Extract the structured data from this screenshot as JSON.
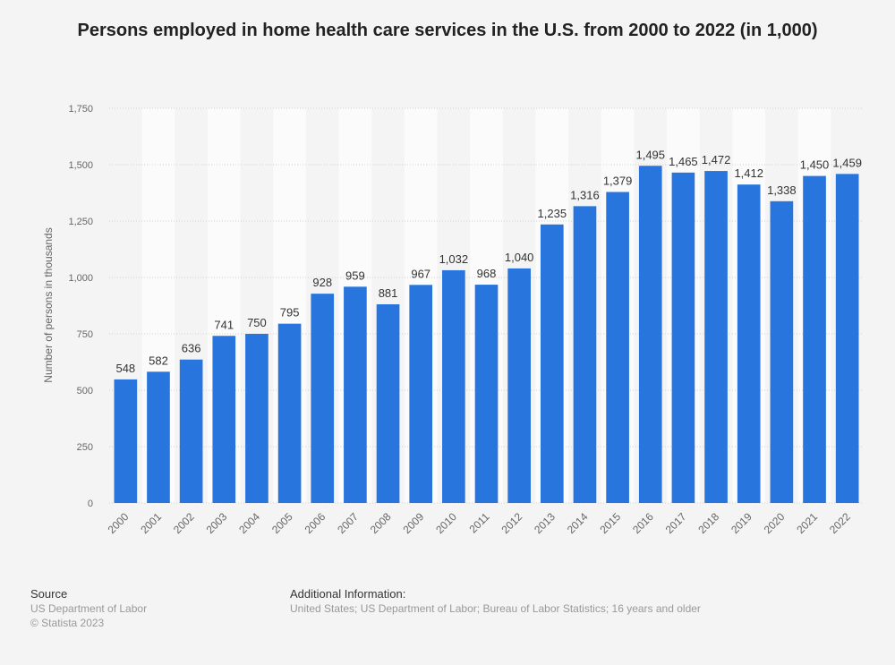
{
  "chart_data": {
    "type": "bar",
    "title": "Persons employed in home health care services in the U.S. from 2000 to 2022 (in 1,000)",
    "ylabel": "Number of persons in thousands",
    "xlabel": "",
    "ylim": [
      0,
      1750
    ],
    "yticks": [
      0,
      250,
      500,
      750,
      1000,
      1250,
      1500,
      1750
    ],
    "ytick_labels": [
      "0",
      "250",
      "500",
      "750",
      "1,000",
      "1,250",
      "1,500",
      "1,750"
    ],
    "categories": [
      "2000",
      "2001",
      "2002",
      "2003",
      "2004",
      "2005",
      "2006",
      "2007",
      "2008",
      "2009",
      "2010",
      "2011",
      "2012",
      "2013",
      "2014",
      "2015",
      "2016",
      "2017",
      "2018",
      "2019",
      "2020",
      "2021",
      "2022"
    ],
    "values": [
      548,
      582,
      636,
      741,
      750,
      795,
      928,
      959,
      881,
      967,
      1032,
      968,
      1040,
      1235,
      1316,
      1379,
      1495,
      1465,
      1472,
      1412,
      1338,
      1450,
      1459
    ],
    "value_labels": [
      "548",
      "582",
      "636",
      "741",
      "750",
      "795",
      "928",
      "959",
      "881",
      "967",
      "1,032",
      "968",
      "1,040",
      "1,235",
      "1,316",
      "1,379",
      "1,495",
      "1,465",
      "1,472",
      "1,412",
      "1,338",
      "1,450",
      "1,459"
    ],
    "bar_color": "#2876dd",
    "grid": true,
    "legend": "none"
  },
  "footer": {
    "source_heading": "Source",
    "source_lines": [
      "US Department of Labor",
      "© Statista 2023"
    ],
    "info_heading": "Additional Information:",
    "info_text": "United States; US Department of Labor; Bureau of Labor Statistics; 16 years and older"
  }
}
